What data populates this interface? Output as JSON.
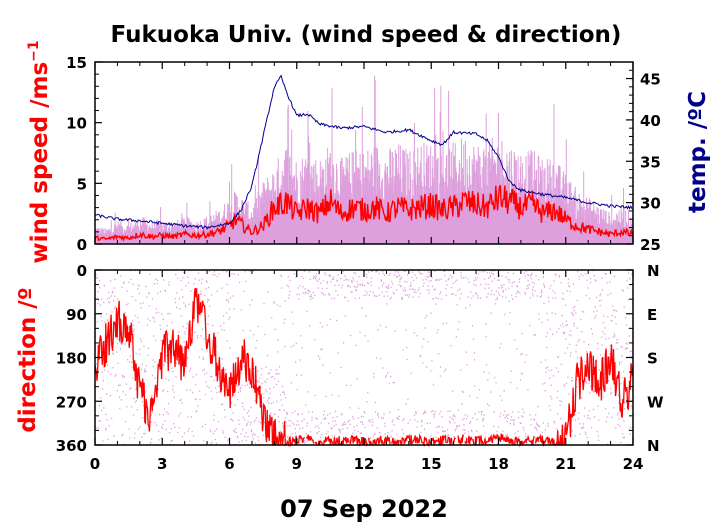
{
  "chart_data": [
    {
      "type": "line",
      "title": "Fukuoka Univ. (wind speed & direction)",
      "xlabel": "07 Sep 2022",
      "ylabel": "wind speed /ms",
      "ylabel_unit_sup": "−1",
      "y2label": "temp. /ºC",
      "xlim": [
        0,
        24
      ],
      "xticks": [
        "0",
        "3",
        "6",
        "9",
        "12",
        "15",
        "18",
        "21",
        "24"
      ],
      "ylim": [
        0,
        15
      ],
      "yticks": [
        "0",
        "5",
        "10",
        "15"
      ],
      "y2lim": [
        25,
        47
      ],
      "y2ticks": [
        "25",
        "30",
        "35",
        "40",
        "45"
      ],
      "colors": {
        "gust": "#dda0dd",
        "wind_mean": "#ff0000",
        "temp": "#00008b",
        "ylabel": "#ff0000",
        "y2label": "#00008b"
      },
      "series": [
        {
          "role": "wind_mean",
          "axis": "left",
          "x": [
            0,
            0.5,
            1,
            1.5,
            2,
            2.5,
            3,
            3.5,
            4,
            4.5,
            5,
            5.5,
            6,
            6.3,
            6.6,
            7,
            7.5,
            8,
            8.5,
            9,
            9.5,
            10,
            10.5,
            11,
            11.5,
            12,
            12.5,
            13,
            13.5,
            14,
            14.5,
            15,
            15.5,
            16,
            16.5,
            17,
            17.5,
            18,
            18.5,
            19,
            19.5,
            20,
            20.5,
            21,
            21.5,
            22,
            22.5,
            23,
            23.5,
            24
          ],
          "values": [
            0.5,
            0.4,
            0.6,
            0.5,
            0.8,
            0.6,
            0.7,
            0.6,
            0.8,
            0.7,
            0.8,
            1.0,
            1.5,
            2.0,
            1.5,
            1.0,
            1.5,
            3.0,
            3.5,
            2.5,
            3.0,
            2.5,
            3.5,
            2.5,
            3.0,
            2.8,
            3.0,
            2.5,
            3.0,
            2.8,
            3.0,
            3.2,
            2.8,
            3.0,
            3.5,
            3.2,
            3.0,
            3.8,
            3.5,
            3.0,
            3.2,
            2.5,
            2.8,
            2.0,
            1.5,
            1.2,
            1.0,
            0.8,
            1.0,
            0.8
          ]
        },
        {
          "role": "gust",
          "axis": "left",
          "x": [
            0,
            0.5,
            1,
            1.5,
            2,
            2.5,
            3,
            3.5,
            4,
            4.5,
            5,
            5.5,
            6,
            6.3,
            6.6,
            7,
            7.5,
            8,
            8.5,
            9,
            9.5,
            10,
            10.5,
            11,
            11.5,
            12,
            12.5,
            13,
            13.5,
            14,
            14.5,
            15,
            15.5,
            16,
            16.5,
            17,
            17.5,
            18,
            18.5,
            19,
            19.5,
            20,
            20.5,
            21,
            21.5,
            22,
            22.5,
            23,
            23.5,
            24
          ],
          "values": [
            1.2,
            1.0,
            1.5,
            1.3,
            1.8,
            1.5,
            1.6,
            1.4,
            1.8,
            1.5,
            1.8,
            2.2,
            3.0,
            3.5,
            3.0,
            2.5,
            4.0,
            5.0,
            6.5,
            5.5,
            6.0,
            5.5,
            6.5,
            5.5,
            6.0,
            6.0,
            6.5,
            6.0,
            6.5,
            6.0,
            6.5,
            6.5,
            6.0,
            6.5,
            7.0,
            6.5,
            6.5,
            7.0,
            6.5,
            6.0,
            6.0,
            5.5,
            5.5,
            4.5,
            3.5,
            3.0,
            2.5,
            2.0,
            2.5,
            2.0
          ]
        },
        {
          "role": "temp",
          "axis": "right",
          "x": [
            0,
            1,
            2,
            3,
            4,
            5,
            6,
            6.5,
            7,
            7.5,
            8,
            8.3,
            8.6,
            9,
            9.5,
            10,
            11,
            12,
            13,
            14,
            15,
            15.5,
            16,
            17,
            17.5,
            18,
            18.5,
            19,
            20,
            21,
            22,
            23,
            24
          ],
          "values": [
            28.5,
            28,
            27.8,
            27.5,
            27.2,
            27,
            27.5,
            29,
            32,
            38,
            44,
            45.2,
            43,
            40.5,
            40.7,
            39.5,
            39,
            39.2,
            38.5,
            38.8,
            37.5,
            37,
            38.5,
            38.3,
            37.5,
            35.5,
            32.5,
            31.5,
            31,
            30.6,
            30,
            29.6,
            29.4
          ]
        }
      ]
    },
    {
      "type": "scatter",
      "xlabel": "07 Sep 2022",
      "ylabel": "direction /º",
      "xlim": [
        0,
        24
      ],
      "xticks": [
        "0",
        "3",
        "6",
        "9",
        "12",
        "15",
        "18",
        "21",
        "24"
      ],
      "ylim": [
        360,
        0
      ],
      "yticks": [
        "0",
        "90",
        "180",
        "270",
        "360"
      ],
      "y2ticks": [
        "N",
        "E",
        "S",
        "W",
        "N"
      ],
      "colors": {
        "gust_dir": "#dda0dd",
        "mean_dir": "#ff0000",
        "ylabel": "#ff0000"
      },
      "series": [
        {
          "role": "mean_dir",
          "x": [
            0,
            0.5,
            1,
            1.5,
            2,
            2.5,
            3,
            3.5,
            4,
            4.5,
            5,
            5.5,
            6,
            6.5,
            7,
            7.5,
            8,
            8.5,
            9,
            9.5,
            10,
            10.5,
            11,
            11.5,
            12,
            12.5,
            13,
            13.5,
            14,
            14.5,
            15,
            15.5,
            16,
            16.5,
            17,
            17.5,
            18,
            18.5,
            19,
            19.5,
            20,
            20.5,
            21,
            21.5,
            22,
            22.5,
            23,
            23.5,
            24
          ],
          "values": [
            200,
            150,
            100,
            120,
            250,
            300,
            180,
            150,
            200,
            60,
            130,
            200,
            260,
            180,
            200,
            300,
            340,
            355,
            350,
            345,
            355,
            350,
            352,
            348,
            355,
            350,
            352,
            355,
            348,
            350,
            355,
            350,
            352,
            348,
            350,
            355,
            345,
            350,
            355,
            352,
            350,
            355,
            350,
            230,
            200,
            240,
            180,
            260,
            230
          ]
        }
      ]
    }
  ]
}
